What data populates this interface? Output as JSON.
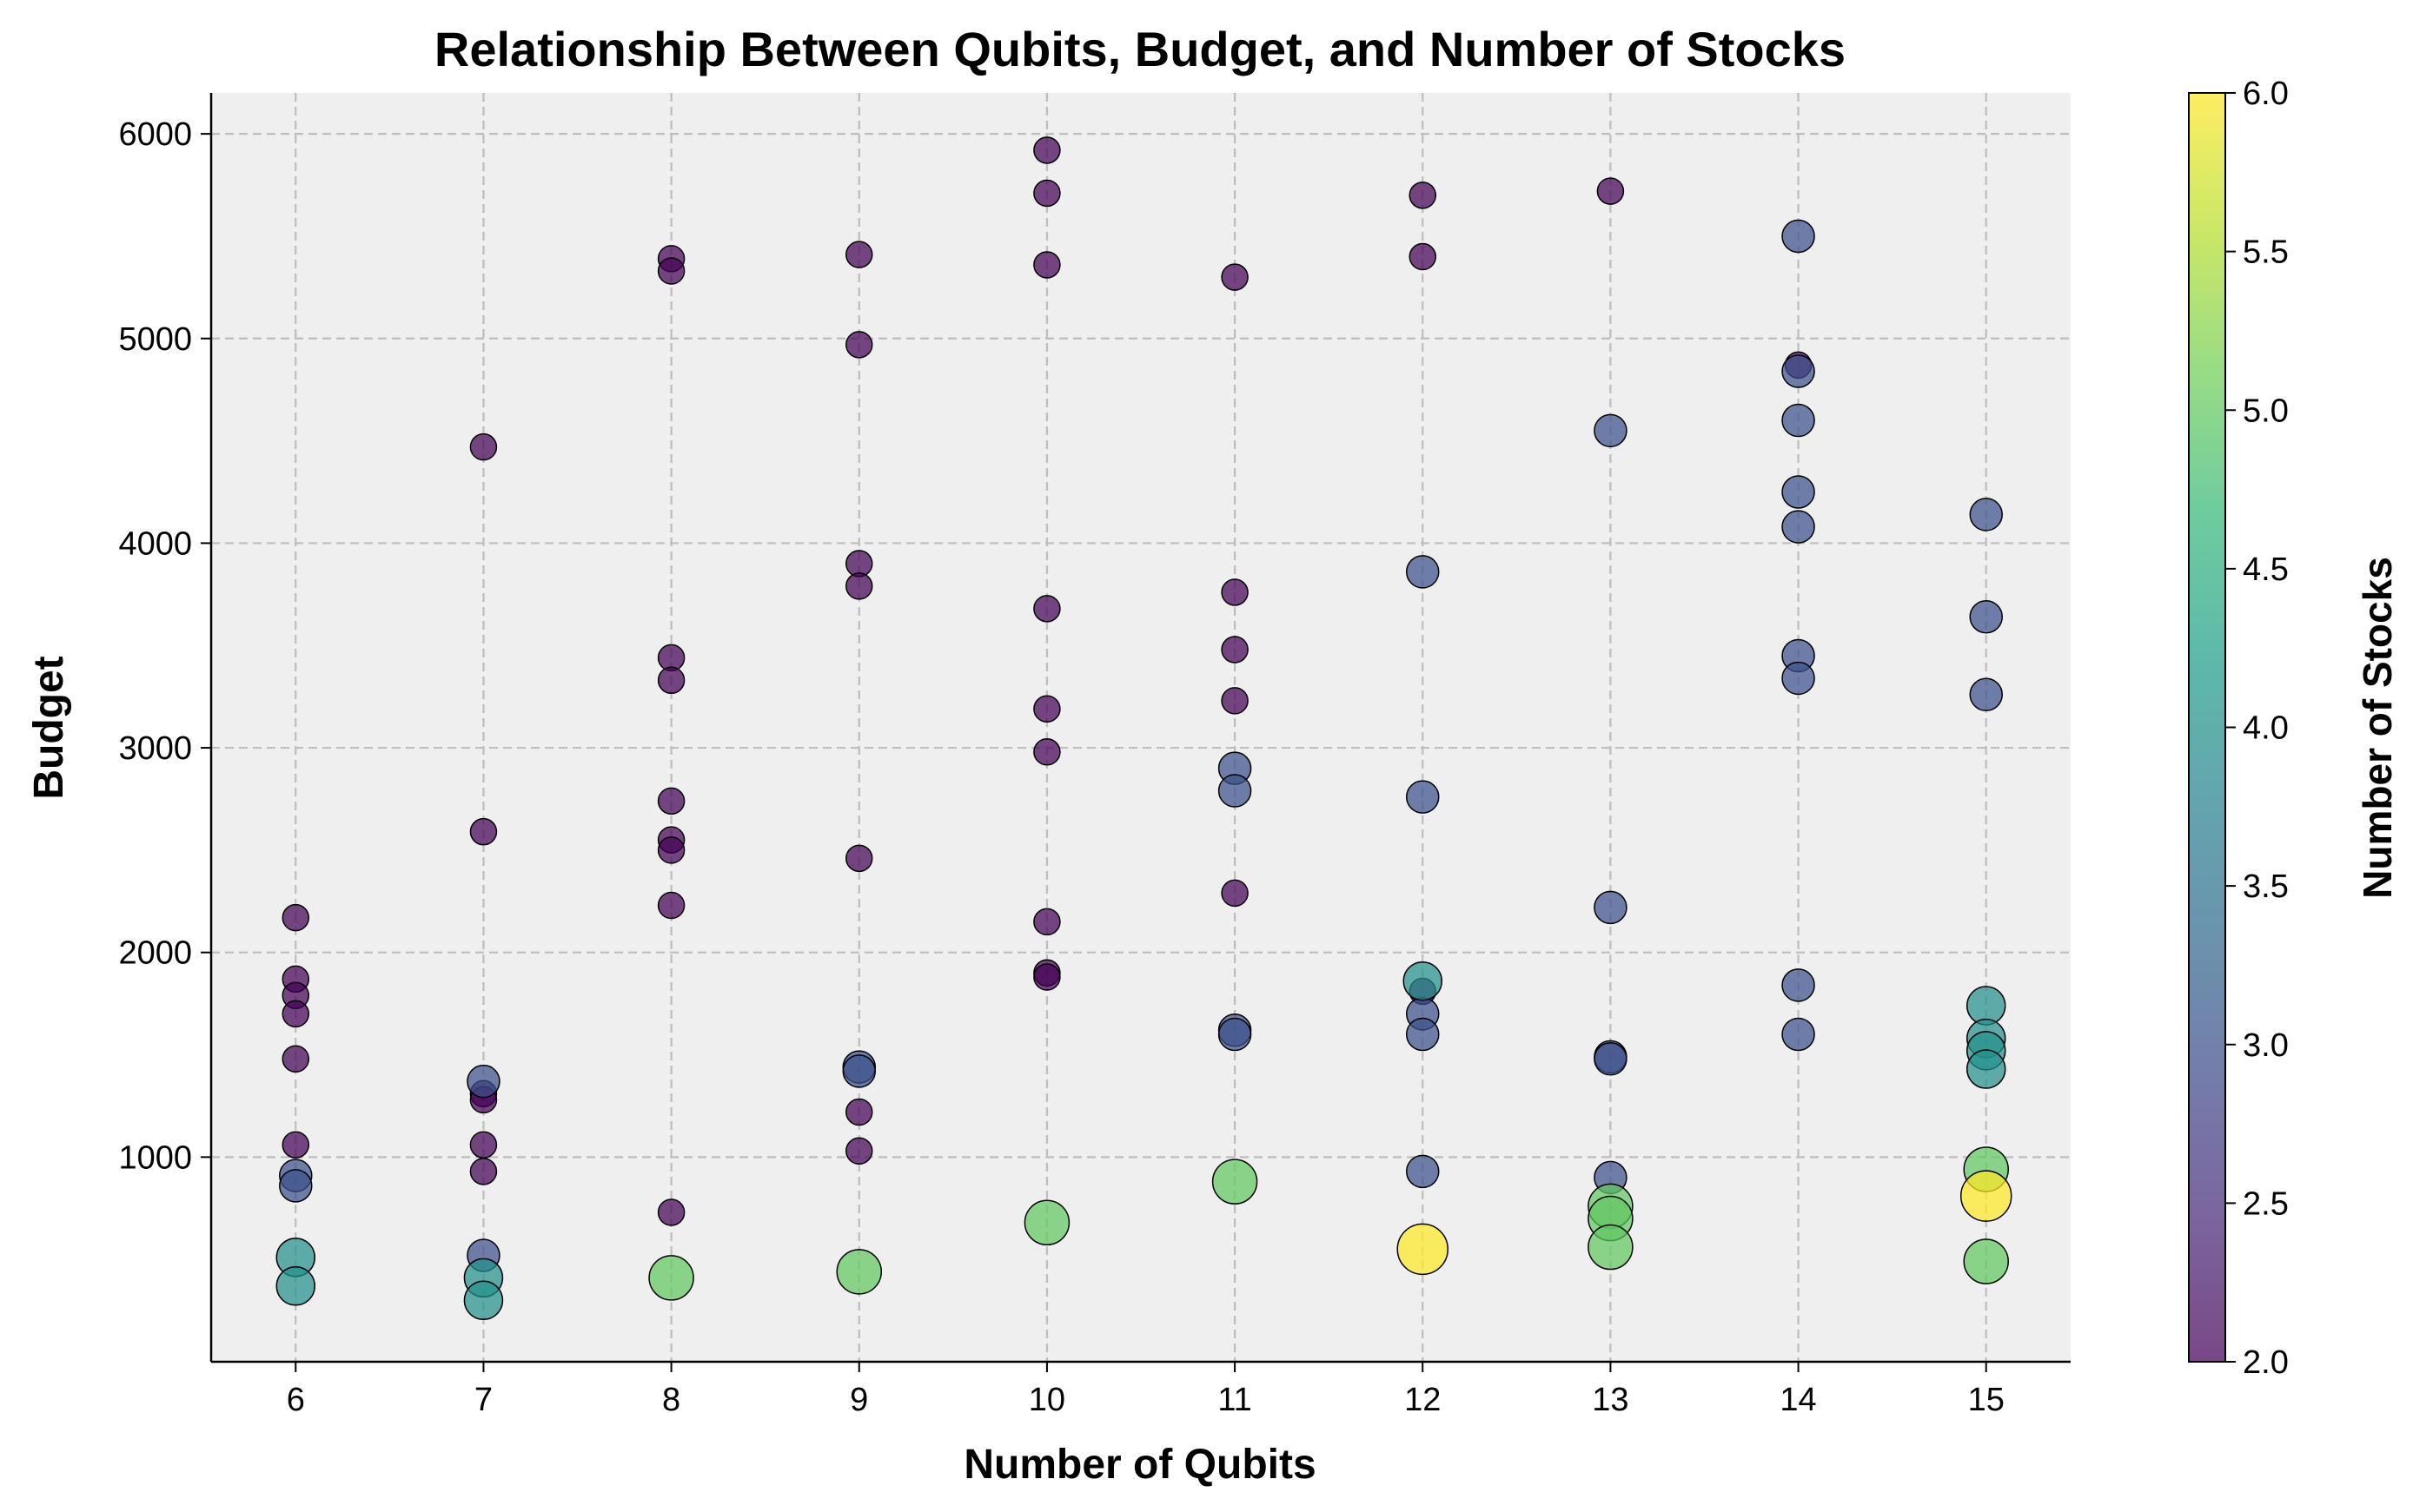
{
  "chart_data": {
    "type": "scatter",
    "title": "Relationship Between Qubits, Budget, and Number of Stocks",
    "xlabel": "Number of Qubits",
    "ylabel": "Budget",
    "xlim": [
      5.55,
      15.45
    ],
    "ylim": [
      0,
      6200
    ],
    "x_ticks": [
      6,
      7,
      8,
      9,
      10,
      11,
      12,
      13,
      14,
      15
    ],
    "y_ticks": [
      1000,
      2000,
      3000,
      4000,
      5000,
      6000
    ],
    "grid": true,
    "colorbar": {
      "label": "Number of Stocks",
      "min": 2.0,
      "max": 6.0,
      "ticks": [
        "2.0",
        "2.5",
        "3.0",
        "3.5",
        "4.0",
        "4.5",
        "5.0",
        "5.5",
        "6.0"
      ],
      "colormap": [
        "#440154",
        "#482878",
        "#3e4989",
        "#31688e",
        "#26828e",
        "#1f9e89",
        "#35b779",
        "#6ece58",
        "#b5de2b",
        "#fde725"
      ]
    },
    "colors": {
      "background": "#efefef",
      "grid": "#bdbdbd",
      "point_edge": "#000000"
    },
    "points": [
      {
        "x": 6,
        "y": 2170,
        "stocks": 2
      },
      {
        "x": 6,
        "y": 1870,
        "stocks": 2
      },
      {
        "x": 6,
        "y": 1790,
        "stocks": 2
      },
      {
        "x": 6,
        "y": 1700,
        "stocks": 2
      },
      {
        "x": 6,
        "y": 1480,
        "stocks": 2
      },
      {
        "x": 6,
        "y": 1060,
        "stocks": 2
      },
      {
        "x": 6,
        "y": 910,
        "stocks": 3
      },
      {
        "x": 6,
        "y": 860,
        "stocks": 3
      },
      {
        "x": 6,
        "y": 510,
        "stocks": 4
      },
      {
        "x": 6,
        "y": 370,
        "stocks": 4
      },
      {
        "x": 7,
        "y": 4470,
        "stocks": 2
      },
      {
        "x": 7,
        "y": 2590,
        "stocks": 2
      },
      {
        "x": 7,
        "y": 1370,
        "stocks": 3
      },
      {
        "x": 7,
        "y": 1310,
        "stocks": 2
      },
      {
        "x": 7,
        "y": 1280,
        "stocks": 2
      },
      {
        "x": 7,
        "y": 1060,
        "stocks": 2
      },
      {
        "x": 7,
        "y": 930,
        "stocks": 2
      },
      {
        "x": 7,
        "y": 520,
        "stocks": 3
      },
      {
        "x": 7,
        "y": 410,
        "stocks": 4
      },
      {
        "x": 7,
        "y": 300,
        "stocks": 4
      },
      {
        "x": 8,
        "y": 5390,
        "stocks": 2
      },
      {
        "x": 8,
        "y": 5330,
        "stocks": 2
      },
      {
        "x": 8,
        "y": 3440,
        "stocks": 2
      },
      {
        "x": 8,
        "y": 3330,
        "stocks": 2
      },
      {
        "x": 8,
        "y": 2740,
        "stocks": 2
      },
      {
        "x": 8,
        "y": 2550,
        "stocks": 2
      },
      {
        "x": 8,
        "y": 2500,
        "stocks": 2
      },
      {
        "x": 8,
        "y": 2230,
        "stocks": 2
      },
      {
        "x": 8,
        "y": 730,
        "stocks": 2
      },
      {
        "x": 8,
        "y": 410,
        "stocks": 5
      },
      {
        "x": 9,
        "y": 5410,
        "stocks": 2
      },
      {
        "x": 9,
        "y": 4970,
        "stocks": 2
      },
      {
        "x": 9,
        "y": 3900,
        "stocks": 2
      },
      {
        "x": 9,
        "y": 3790,
        "stocks": 2
      },
      {
        "x": 9,
        "y": 2460,
        "stocks": 2
      },
      {
        "x": 9,
        "y": 1440,
        "stocks": 3
      },
      {
        "x": 9,
        "y": 1420,
        "stocks": 3
      },
      {
        "x": 9,
        "y": 1220,
        "stocks": 2
      },
      {
        "x": 9,
        "y": 1030,
        "stocks": 2
      },
      {
        "x": 9,
        "y": 440,
        "stocks": 5
      },
      {
        "x": 10,
        "y": 5920,
        "stocks": 2
      },
      {
        "x": 10,
        "y": 5710,
        "stocks": 2
      },
      {
        "x": 10,
        "y": 5360,
        "stocks": 2
      },
      {
        "x": 10,
        "y": 3680,
        "stocks": 2
      },
      {
        "x": 10,
        "y": 3190,
        "stocks": 2
      },
      {
        "x": 10,
        "y": 2980,
        "stocks": 2
      },
      {
        "x": 10,
        "y": 2150,
        "stocks": 2
      },
      {
        "x": 10,
        "y": 1900,
        "stocks": 2
      },
      {
        "x": 10,
        "y": 1880,
        "stocks": 2
      },
      {
        "x": 10,
        "y": 680,
        "stocks": 5
      },
      {
        "x": 11,
        "y": 5300,
        "stocks": 2
      },
      {
        "x": 11,
        "y": 3760,
        "stocks": 2
      },
      {
        "x": 11,
        "y": 3480,
        "stocks": 2
      },
      {
        "x": 11,
        "y": 3230,
        "stocks": 2
      },
      {
        "x": 11,
        "y": 2900,
        "stocks": 3
      },
      {
        "x": 11,
        "y": 2790,
        "stocks": 3
      },
      {
        "x": 11,
        "y": 2290,
        "stocks": 2
      },
      {
        "x": 11,
        "y": 1620,
        "stocks": 3
      },
      {
        "x": 11,
        "y": 1600,
        "stocks": 3
      },
      {
        "x": 11,
        "y": 880,
        "stocks": 5
      },
      {
        "x": 12,
        "y": 5700,
        "stocks": 2
      },
      {
        "x": 12,
        "y": 5400,
        "stocks": 2
      },
      {
        "x": 12,
        "y": 3860,
        "stocks": 3
      },
      {
        "x": 12,
        "y": 2760,
        "stocks": 3
      },
      {
        "x": 12,
        "y": 1860,
        "stocks": 4
      },
      {
        "x": 12,
        "y": 1810,
        "stocks": 2
      },
      {
        "x": 12,
        "y": 1700,
        "stocks": 3
      },
      {
        "x": 12,
        "y": 1600,
        "stocks": 3
      },
      {
        "x": 12,
        "y": 930,
        "stocks": 3
      },
      {
        "x": 12,
        "y": 550,
        "stocks": 6
      },
      {
        "x": 13,
        "y": 5720,
        "stocks": 2
      },
      {
        "x": 13,
        "y": 4550,
        "stocks": 3
      },
      {
        "x": 13,
        "y": 2220,
        "stocks": 3
      },
      {
        "x": 13,
        "y": 1490,
        "stocks": 3
      },
      {
        "x": 13,
        "y": 1480,
        "stocks": 3
      },
      {
        "x": 13,
        "y": 900,
        "stocks": 3
      },
      {
        "x": 13,
        "y": 760,
        "stocks": 5
      },
      {
        "x": 13,
        "y": 700,
        "stocks": 5
      },
      {
        "x": 13,
        "y": 560,
        "stocks": 5
      },
      {
        "x": 14,
        "y": 5500,
        "stocks": 3
      },
      {
        "x": 14,
        "y": 4870,
        "stocks": 2
      },
      {
        "x": 14,
        "y": 4840,
        "stocks": 3
      },
      {
        "x": 14,
        "y": 4600,
        "stocks": 3
      },
      {
        "x": 14,
        "y": 4250,
        "stocks": 3
      },
      {
        "x": 14,
        "y": 4080,
        "stocks": 3
      },
      {
        "x": 14,
        "y": 3450,
        "stocks": 3
      },
      {
        "x": 14,
        "y": 3340,
        "stocks": 3
      },
      {
        "x": 14,
        "y": 1840,
        "stocks": 3
      },
      {
        "x": 14,
        "y": 1600,
        "stocks": 3
      },
      {
        "x": 15,
        "y": 4140,
        "stocks": 3
      },
      {
        "x": 15,
        "y": 3640,
        "stocks": 3
      },
      {
        "x": 15,
        "y": 3260,
        "stocks": 3
      },
      {
        "x": 15,
        "y": 1740,
        "stocks": 4
      },
      {
        "x": 15,
        "y": 1580,
        "stocks": 4
      },
      {
        "x": 15,
        "y": 1520,
        "stocks": 4
      },
      {
        "x": 15,
        "y": 1430,
        "stocks": 4
      },
      {
        "x": 15,
        "y": 940,
        "stocks": 5
      },
      {
        "x": 15,
        "y": 810,
        "stocks": 6
      },
      {
        "x": 15,
        "y": 490,
        "stocks": 5
      }
    ]
  }
}
